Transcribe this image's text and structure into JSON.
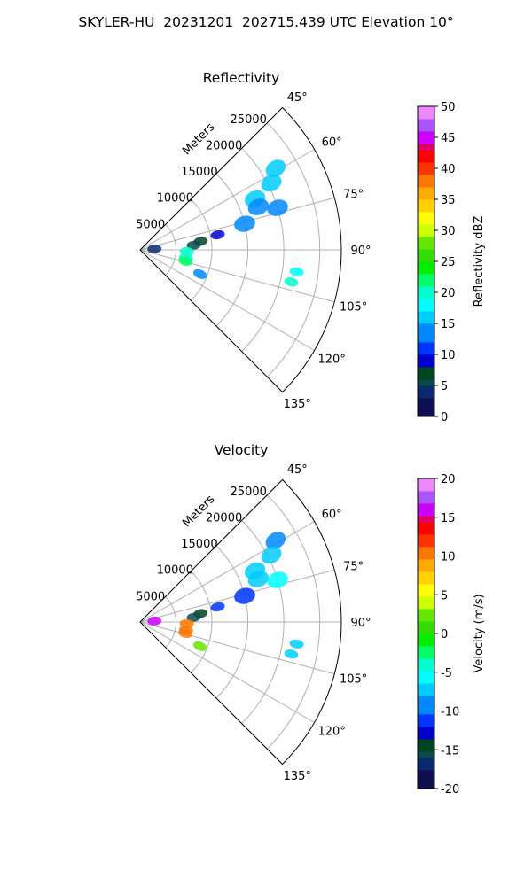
{
  "title": "SKYLER-HU  20231201  202715.439 UTC Elevation 10°",
  "chart_data": [
    {
      "type": "polar-sector",
      "title": "Reflectivity",
      "range_label": "Meters",
      "r_ticks": [
        5000,
        10000,
        15000,
        20000,
        25000
      ],
      "r_max": 28000,
      "azimuth_range": [
        45,
        135
      ],
      "azimuth_ticks": [
        "45°",
        "60°",
        "75°",
        "90°",
        "105°",
        "120°",
        "135°"
      ],
      "grid": true,
      "colorbar": {
        "label": "Reflectivity dBZ",
        "range": [
          0,
          50
        ],
        "ticks": [
          0,
          5,
          10,
          15,
          20,
          25,
          30,
          35,
          40,
          45,
          50
        ]
      },
      "echoes": [
        {
          "az": 59,
          "range": 22000,
          "value": 15
        },
        {
          "az": 63,
          "range": 20500,
          "value": 16
        },
        {
          "az": 66,
          "range": 17500,
          "value": 15
        },
        {
          "az": 70,
          "range": 17500,
          "value": 13
        },
        {
          "az": 73,
          "range": 20000,
          "value": 14
        },
        {
          "az": 76,
          "range": 15000,
          "value": 12
        },
        {
          "az": 79,
          "range": 11000,
          "value": 9
        },
        {
          "az": 82,
          "range": 8500,
          "value": 7
        },
        {
          "az": 85,
          "range": 7500,
          "value": 6
        },
        {
          "az": 92,
          "range": 6500,
          "value": 20
        },
        {
          "az": 100,
          "range": 6500,
          "value": 20
        },
        {
          "az": 104,
          "range": 6500,
          "value": 21
        },
        {
          "az": 112,
          "range": 9000,
          "value": 14
        },
        {
          "az": 98,
          "range": 22000,
          "value": 18
        },
        {
          "az": 102,
          "range": 21500,
          "value": 19
        },
        {
          "az": 86,
          "range": 2000,
          "value": 4
        }
      ]
    },
    {
      "type": "polar-sector",
      "title": "Velocity",
      "range_label": "Meters",
      "r_ticks": [
        5000,
        10000,
        15000,
        20000,
        25000
      ],
      "r_max": 28000,
      "azimuth_range": [
        45,
        135
      ],
      "azimuth_ticks": [
        "45°",
        "60°",
        "75°",
        "90°",
        "105°",
        "120°",
        "135°"
      ],
      "grid": true,
      "colorbar": {
        "label": "Velocity (m/s)",
        "range": [
          -20,
          20
        ],
        "ticks": [
          -20,
          -15,
          -10,
          -5,
          0,
          5,
          10,
          15,
          20
        ]
      },
      "echoes": [
        {
          "az": 59,
          "range": 22000,
          "value": -9
        },
        {
          "az": 63,
          "range": 20500,
          "value": -8
        },
        {
          "az": 66,
          "range": 17500,
          "value": -8
        },
        {
          "az": 70,
          "range": 17500,
          "value": -7
        },
        {
          "az": 73,
          "range": 20000,
          "value": -6
        },
        {
          "az": 76,
          "range": 15000,
          "value": -11
        },
        {
          "az": 79,
          "range": 11000,
          "value": -12
        },
        {
          "az": 82,
          "range": 8500,
          "value": -14
        },
        {
          "az": 85,
          "range": 7500,
          "value": -16
        },
        {
          "az": 92,
          "range": 6500,
          "value": 10
        },
        {
          "az": 100,
          "range": 6500,
          "value": 10
        },
        {
          "az": 104,
          "range": 6500,
          "value": 10
        },
        {
          "az": 112,
          "range": 9000,
          "value": 3
        },
        {
          "az": 98,
          "range": 22000,
          "value": -8
        },
        {
          "az": 102,
          "range": 21500,
          "value": -8
        },
        {
          "az": 86,
          "range": 2000,
          "value": 16
        }
      ]
    }
  ]
}
